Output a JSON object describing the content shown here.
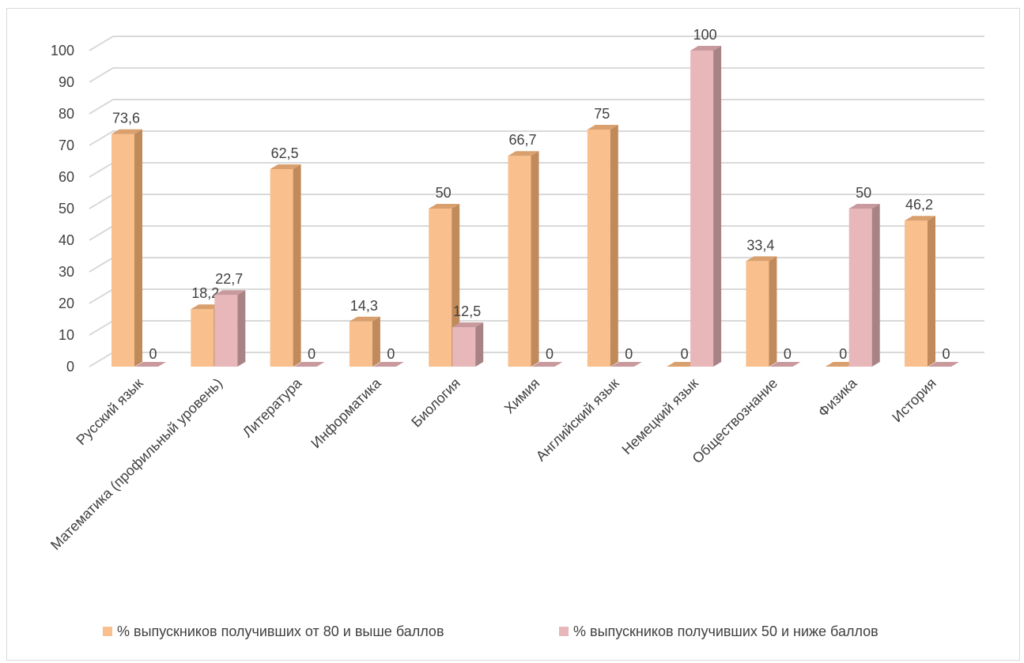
{
  "chart_data": {
    "type": "bar",
    "categories": [
      "Русский язык",
      "Математика (профильный уровень)",
      "Литература",
      "Информатика",
      "Биология",
      "Химия",
      "Английский язык",
      "Немецкий язык",
      "Обществознание",
      "Физика",
      "История"
    ],
    "series": [
      {
        "name": "% выпускников получивших от 80 и выше баллов",
        "values": [
          73.6,
          18.2,
          62.5,
          14.3,
          50,
          66.7,
          75,
          0,
          33.4,
          0,
          46.2
        ],
        "labels": [
          "73,6",
          "18,2",
          "62,5",
          "14,3",
          "50",
          "66,7",
          "75",
          "0",
          "33,4",
          "0",
          "46,2"
        ],
        "color": "#F9C08E",
        "side_color": "#C08A5A",
        "top_color": "#D9A06E"
      },
      {
        "name": "% выпускников получивших 50 и ниже баллов",
        "values": [
          0,
          22.7,
          0,
          0,
          12.5,
          0,
          0,
          100,
          0,
          50,
          0
        ],
        "labels": [
          "0",
          "22,7",
          "0",
          "0",
          "12,5",
          "0",
          "0",
          "100",
          "0",
          "50",
          "0"
        ],
        "color": "#E8B7B9",
        "side_color": "#A88386",
        "top_color": "#C99A9D"
      }
    ],
    "y_ticks": [
      "0",
      "10",
      "20",
      "30",
      "40",
      "50",
      "60",
      "70",
      "80",
      "90",
      "100"
    ],
    "ylim": [
      0,
      100
    ],
    "grid": true,
    "legend": "bottom"
  }
}
